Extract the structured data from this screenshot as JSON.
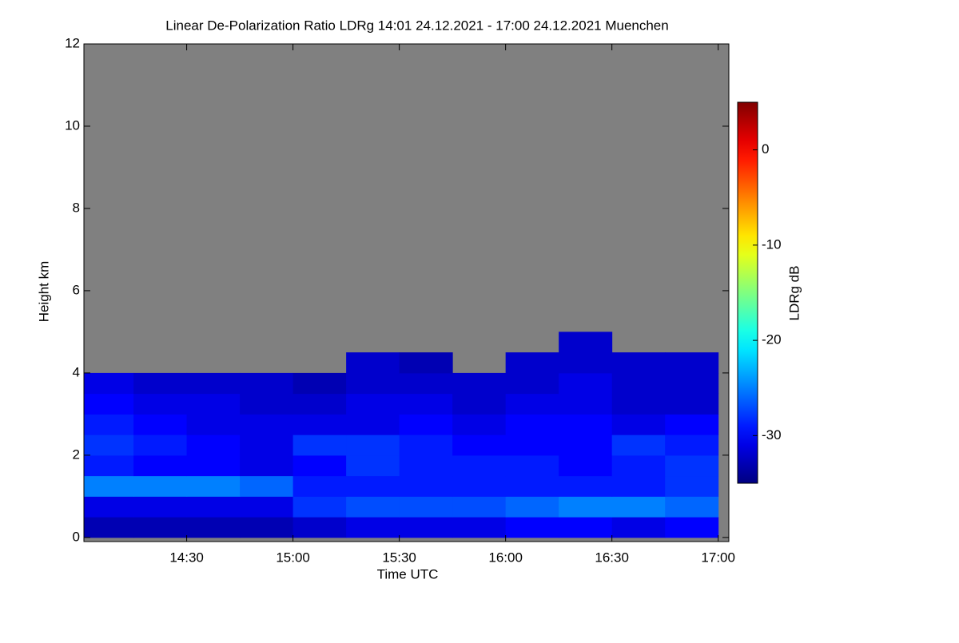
{
  "chart_data": {
    "type": "heatmap",
    "title": "Linear De-Polarization Ratio LDRg   14:01 24.12.2021 - 17:00 24.12.2021 Muenchen",
    "xlabel": "Time UTC",
    "ylabel": "Height km",
    "colorbar_label": "LDRg dB",
    "xlim": [
      "14:01",
      "17:03"
    ],
    "xticks": [
      "14:30",
      "15:00",
      "15:30",
      "16:00",
      "16:30",
      "17:00"
    ],
    "ylim": [
      -0.1,
      12
    ],
    "yticks": [
      0,
      2,
      4,
      6,
      8,
      10,
      12
    ],
    "clim": [
      -35,
      5
    ],
    "cticks": [
      0,
      -10,
      -20,
      -30
    ],
    "colormap": "jet",
    "missing_color": "#808080",
    "x_bins": [
      "14:00",
      "14:15",
      "14:30",
      "14:45",
      "15:00",
      "15:15",
      "15:30",
      "15:45",
      "16:00",
      "16:15",
      "16:30",
      "16:45",
      "17:00"
    ],
    "y_bins": [
      0,
      0.5,
      1,
      1.5,
      2,
      2.5,
      3,
      3.5,
      4,
      4.5,
      5
    ],
    "z": [
      [
        -33,
        -33,
        -33,
        -33,
        -32,
        -31,
        -31,
        -31,
        -30,
        -30,
        -31,
        -30
      ],
      [
        -31,
        -31,
        -31,
        -31,
        -28,
        -27,
        -27,
        -27,
        -26,
        -25,
        -25,
        -26
      ],
      [
        -25,
        -25,
        -25,
        -26,
        -29,
        -29,
        -29,
        -29,
        -29,
        -29,
        -29,
        -28
      ],
      [
        -29,
        -30,
        -30,
        -31,
        -30,
        -28,
        -29,
        -29,
        -29,
        -30,
        -29,
        -28
      ],
      [
        -28,
        -29,
        -30,
        -31,
        -28,
        -28,
        -29,
        -30,
        -30,
        -30,
        -28,
        -29
      ],
      [
        -29,
        -30,
        -31,
        -31,
        -31,
        -31,
        -30,
        -31,
        -30,
        -30,
        -31,
        -30
      ],
      [
        -30,
        -31,
        -31,
        -32,
        -32,
        -31,
        -31,
        -32,
        -31,
        -31,
        -32,
        -32
      ],
      [
        -31,
        -32,
        -32,
        -32,
        -33,
        -32,
        -32,
        -32,
        -32,
        -31,
        -32,
        -32
      ],
      [
        null,
        null,
        null,
        null,
        null,
        -32,
        -33,
        null,
        -32,
        -32,
        -32,
        -32
      ],
      [
        null,
        null,
        null,
        null,
        null,
        null,
        null,
        null,
        null,
        -32,
        null,
        null
      ]
    ]
  }
}
